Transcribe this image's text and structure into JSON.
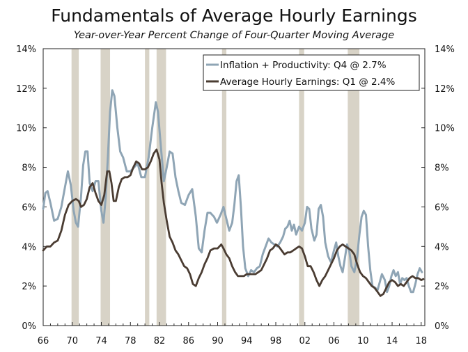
{
  "chart_data": {
    "type": "line",
    "title": "Fundamentals of Average Hourly Earnings",
    "subtitle": "Year-over-Year Percent Change of Four-Quarter Moving Average",
    "xlim": [
      1966,
      2018.5
    ],
    "ylim": [
      0,
      14
    ],
    "x_ticks": [
      1966,
      1970,
      1974,
      1978,
      1982,
      1986,
      1990,
      1994,
      1998,
      2002,
      2006,
      2010,
      2014,
      2018
    ],
    "x_tick_labels": [
      "66",
      "70",
      "74",
      "78",
      "82",
      "86",
      "90",
      "94",
      "98",
      "02",
      "06",
      "10",
      "14",
      "18"
    ],
    "y_ticks": [
      0,
      2,
      4,
      6,
      8,
      10,
      12,
      14
    ],
    "y_tick_labels": [
      "0%",
      "2%",
      "4%",
      "6%",
      "8%",
      "10%",
      "12%",
      "14%"
    ],
    "legend_position": "top-right",
    "recessions": [
      [
        1969.9,
        1970.9
      ],
      [
        1973.9,
        1975.2
      ],
      [
        1980.0,
        1980.6
      ],
      [
        1981.6,
        1982.9
      ],
      [
        1990.6,
        1991.2
      ],
      [
        2001.2,
        2001.9
      ],
      [
        2007.9,
        2009.5
      ]
    ],
    "series": [
      {
        "name": "Inflation + Productivity: Q4 @ 2.7%",
        "color": "#8fa5b5",
        "points": [
          [
            1966.0,
            5.9
          ],
          [
            1966.3,
            6.7
          ],
          [
            1966.6,
            6.8
          ],
          [
            1967.0,
            6.2
          ],
          [
            1967.5,
            5.3
          ],
          [
            1968.0,
            5.4
          ],
          [
            1968.5,
            6.0
          ],
          [
            1969.0,
            7.0
          ],
          [
            1969.4,
            7.8
          ],
          [
            1969.8,
            7.1
          ],
          [
            1970.2,
            5.8
          ],
          [
            1970.5,
            5.2
          ],
          [
            1970.8,
            5.0
          ],
          [
            1971.2,
            6.5
          ],
          [
            1971.5,
            8.1
          ],
          [
            1971.8,
            8.8
          ],
          [
            1972.1,
            8.8
          ],
          [
            1972.4,
            7.2
          ],
          [
            1972.8,
            6.8
          ],
          [
            1973.2,
            7.3
          ],
          [
            1973.6,
            7.3
          ],
          [
            1974.0,
            5.8
          ],
          [
            1974.3,
            5.2
          ],
          [
            1974.6,
            6.5
          ],
          [
            1974.9,
            8.5
          ],
          [
            1975.2,
            10.8
          ],
          [
            1975.5,
            11.9
          ],
          [
            1975.8,
            11.6
          ],
          [
            1976.2,
            10.0
          ],
          [
            1976.6,
            8.8
          ],
          [
            1977.0,
            8.5
          ],
          [
            1977.5,
            7.8
          ],
          [
            1978.0,
            7.8
          ],
          [
            1978.5,
            8.0
          ],
          [
            1979.0,
            8.2
          ],
          [
            1979.5,
            7.5
          ],
          [
            1980.0,
            7.5
          ],
          [
            1980.5,
            8.5
          ],
          [
            1981.0,
            10.0
          ],
          [
            1981.5,
            11.3
          ],
          [
            1981.8,
            10.8
          ],
          [
            1982.2,
            9.0
          ],
          [
            1982.6,
            7.3
          ],
          [
            1983.0,
            8.0
          ],
          [
            1983.4,
            8.8
          ],
          [
            1983.8,
            8.7
          ],
          [
            1984.2,
            7.5
          ],
          [
            1984.6,
            6.8
          ],
          [
            1985.0,
            6.2
          ],
          [
            1985.5,
            6.1
          ],
          [
            1986.0,
            6.6
          ],
          [
            1986.5,
            6.9
          ],
          [
            1987.0,
            5.5
          ],
          [
            1987.4,
            3.9
          ],
          [
            1987.8,
            3.7
          ],
          [
            1988.2,
            4.8
          ],
          [
            1988.6,
            5.7
          ],
          [
            1989.0,
            5.7
          ],
          [
            1989.5,
            5.5
          ],
          [
            1989.9,
            5.2
          ],
          [
            1990.4,
            5.6
          ],
          [
            1990.8,
            6.0
          ],
          [
            1991.2,
            5.4
          ],
          [
            1991.6,
            4.8
          ],
          [
            1992.0,
            5.2
          ],
          [
            1992.3,
            6.1
          ],
          [
            1992.6,
            7.3
          ],
          [
            1992.9,
            7.6
          ],
          [
            1993.2,
            6.0
          ],
          [
            1993.5,
            4.0
          ],
          [
            1993.8,
            2.9
          ],
          [
            1994.2,
            2.5
          ],
          [
            1994.6,
            2.8
          ],
          [
            1995.0,
            2.7
          ],
          [
            1995.4,
            2.9
          ],
          [
            1995.8,
            3.0
          ],
          [
            1996.2,
            3.6
          ],
          [
            1996.6,
            4.0
          ],
          [
            1997.0,
            4.4
          ],
          [
            1997.4,
            4.2
          ],
          [
            1997.8,
            4.1
          ],
          [
            1998.2,
            4.0
          ],
          [
            1998.6,
            4.2
          ],
          [
            1999.0,
            4.5
          ],
          [
            1999.3,
            4.9
          ],
          [
            1999.6,
            5.0
          ],
          [
            1999.9,
            5.3
          ],
          [
            2000.2,
            4.8
          ],
          [
            2000.5,
            5.1
          ],
          [
            2000.8,
            4.6
          ],
          [
            2001.2,
            5.0
          ],
          [
            2001.6,
            4.8
          ],
          [
            2002.0,
            5.2
          ],
          [
            2002.3,
            6.0
          ],
          [
            2002.6,
            5.9
          ],
          [
            2002.9,
            4.9
          ],
          [
            2003.3,
            4.3
          ],
          [
            2003.6,
            4.6
          ],
          [
            2003.9,
            5.9
          ],
          [
            2004.2,
            6.1
          ],
          [
            2004.5,
            5.5
          ],
          [
            2004.8,
            4.2
          ],
          [
            2005.2,
            3.5
          ],
          [
            2005.6,
            3.2
          ],
          [
            2006.0,
            3.8
          ],
          [
            2006.3,
            4.2
          ],
          [
            2006.6,
            3.5
          ],
          [
            2006.9,
            3.0
          ],
          [
            2007.2,
            2.7
          ],
          [
            2007.5,
            3.4
          ],
          [
            2007.8,
            4.1
          ],
          [
            2008.1,
            3.8
          ],
          [
            2008.4,
            3.0
          ],
          [
            2008.8,
            2.7
          ],
          [
            2009.2,
            3.5
          ],
          [
            2009.5,
            4.6
          ],
          [
            2009.8,
            5.5
          ],
          [
            2010.1,
            5.8
          ],
          [
            2010.4,
            5.6
          ],
          [
            2010.7,
            4.0
          ],
          [
            2011.0,
            2.8
          ],
          [
            2011.3,
            2.0
          ],
          [
            2011.7,
            1.9
          ],
          [
            2012.0,
            1.8
          ],
          [
            2012.3,
            2.2
          ],
          [
            2012.6,
            2.6
          ],
          [
            2013.0,
            2.3
          ],
          [
            2013.3,
            1.7
          ],
          [
            2013.6,
            2.0
          ],
          [
            2013.9,
            2.5
          ],
          [
            2014.2,
            2.8
          ],
          [
            2014.5,
            2.5
          ],
          [
            2014.8,
            2.7
          ],
          [
            2015.1,
            2.1
          ],
          [
            2015.4,
            2.4
          ],
          [
            2015.7,
            2.3
          ],
          [
            2016.0,
            2.4
          ],
          [
            2016.3,
            2.0
          ],
          [
            2016.6,
            1.7
          ],
          [
            2016.9,
            1.7
          ],
          [
            2017.2,
            2.1
          ],
          [
            2017.5,
            2.6
          ],
          [
            2017.8,
            2.9
          ],
          [
            2018.1,
            2.7
          ]
        ]
      },
      {
        "name": "Average Hourly Earnings: Q1 @ 2.4%",
        "color": "#4a3c32",
        "points": [
          [
            1966.0,
            3.8
          ],
          [
            1966.5,
            4.0
          ],
          [
            1967.0,
            4.0
          ],
          [
            1967.5,
            4.2
          ],
          [
            1968.0,
            4.3
          ],
          [
            1968.5,
            4.8
          ],
          [
            1969.0,
            5.6
          ],
          [
            1969.5,
            6.1
          ],
          [
            1970.0,
            6.3
          ],
          [
            1970.5,
            6.4
          ],
          [
            1970.9,
            6.3
          ],
          [
            1971.2,
            6.0
          ],
          [
            1971.6,
            6.1
          ],
          [
            1972.0,
            6.4
          ],
          [
            1972.4,
            7.0
          ],
          [
            1972.8,
            7.2
          ],
          [
            1973.2,
            6.7
          ],
          [
            1973.6,
            6.3
          ],
          [
            1974.0,
            6.1
          ],
          [
            1974.4,
            6.6
          ],
          [
            1974.8,
            7.8
          ],
          [
            1975.1,
            7.8
          ],
          [
            1975.4,
            7.2
          ],
          [
            1975.7,
            6.3
          ],
          [
            1976.0,
            6.3
          ],
          [
            1976.4,
            7.0
          ],
          [
            1976.8,
            7.4
          ],
          [
            1977.2,
            7.5
          ],
          [
            1977.6,
            7.5
          ],
          [
            1978.0,
            7.6
          ],
          [
            1978.4,
            8.0
          ],
          [
            1978.8,
            8.3
          ],
          [
            1979.2,
            8.2
          ],
          [
            1979.6,
            7.9
          ],
          [
            1980.0,
            7.9
          ],
          [
            1980.4,
            8.0
          ],
          [
            1980.8,
            8.3
          ],
          [
            1981.2,
            8.7
          ],
          [
            1981.6,
            8.9
          ],
          [
            1982.0,
            8.4
          ],
          [
            1982.3,
            7.2
          ],
          [
            1982.6,
            6.2
          ],
          [
            1983.0,
            5.3
          ],
          [
            1983.4,
            4.5
          ],
          [
            1983.8,
            4.2
          ],
          [
            1984.2,
            3.8
          ],
          [
            1984.6,
            3.6
          ],
          [
            1985.0,
            3.3
          ],
          [
            1985.4,
            3.0
          ],
          [
            1985.8,
            2.9
          ],
          [
            1986.2,
            2.6
          ],
          [
            1986.6,
            2.1
          ],
          [
            1987.0,
            2.0
          ],
          [
            1987.4,
            2.4
          ],
          [
            1987.8,
            2.7
          ],
          [
            1988.2,
            3.1
          ],
          [
            1988.6,
            3.4
          ],
          [
            1989.0,
            3.8
          ],
          [
            1989.5,
            3.9
          ],
          [
            1990.0,
            3.9
          ],
          [
            1990.5,
            4.1
          ],
          [
            1990.8,
            3.9
          ],
          [
            1991.2,
            3.6
          ],
          [
            1991.6,
            3.4
          ],
          [
            1992.0,
            3.0
          ],
          [
            1992.4,
            2.7
          ],
          [
            1992.8,
            2.5
          ],
          [
            1993.2,
            2.5
          ],
          [
            1993.6,
            2.5
          ],
          [
            1994.0,
            2.6
          ],
          [
            1994.4,
            2.6
          ],
          [
            1994.8,
            2.6
          ],
          [
            1995.2,
            2.6
          ],
          [
            1995.6,
            2.7
          ],
          [
            1996.0,
            2.8
          ],
          [
            1996.4,
            3.1
          ],
          [
            1996.8,
            3.4
          ],
          [
            1997.2,
            3.8
          ],
          [
            1997.6,
            3.9
          ],
          [
            1998.0,
            4.1
          ],
          [
            1998.4,
            4.0
          ],
          [
            1998.8,
            3.8
          ],
          [
            1999.2,
            3.6
          ],
          [
            1999.6,
            3.7
          ],
          [
            2000.0,
            3.7
          ],
          [
            2000.4,
            3.8
          ],
          [
            2000.8,
            3.9
          ],
          [
            2001.2,
            4.0
          ],
          [
            2001.6,
            3.9
          ],
          [
            2002.0,
            3.5
          ],
          [
            2002.4,
            3.0
          ],
          [
            2002.8,
            3.0
          ],
          [
            2003.2,
            2.7
          ],
          [
            2003.6,
            2.3
          ],
          [
            2004.0,
            2.0
          ],
          [
            2004.4,
            2.3
          ],
          [
            2004.8,
            2.5
          ],
          [
            2005.2,
            2.8
          ],
          [
            2005.6,
            3.1
          ],
          [
            2006.0,
            3.4
          ],
          [
            2006.4,
            3.8
          ],
          [
            2006.8,
            4.0
          ],
          [
            2007.2,
            4.1
          ],
          [
            2007.6,
            4.0
          ],
          [
            2008.0,
            3.9
          ],
          [
            2008.4,
            3.8
          ],
          [
            2008.8,
            3.6
          ],
          [
            2009.2,
            3.1
          ],
          [
            2009.6,
            2.7
          ],
          [
            2010.0,
            2.5
          ],
          [
            2010.4,
            2.4
          ],
          [
            2010.8,
            2.2
          ],
          [
            2011.2,
            2.0
          ],
          [
            2011.6,
            1.9
          ],
          [
            2012.0,
            1.7
          ],
          [
            2012.4,
            1.5
          ],
          [
            2012.8,
            1.6
          ],
          [
            2013.2,
            1.9
          ],
          [
            2013.6,
            2.2
          ],
          [
            2014.0,
            2.3
          ],
          [
            2014.4,
            2.2
          ],
          [
            2014.8,
            2.0
          ],
          [
            2015.2,
            2.1
          ],
          [
            2015.6,
            2.0
          ],
          [
            2016.0,
            2.2
          ],
          [
            2016.4,
            2.4
          ],
          [
            2016.8,
            2.5
          ],
          [
            2017.2,
            2.4
          ],
          [
            2017.6,
            2.4
          ],
          [
            2018.0,
            2.3
          ],
          [
            2018.3,
            2.35
          ]
        ]
      }
    ]
  }
}
